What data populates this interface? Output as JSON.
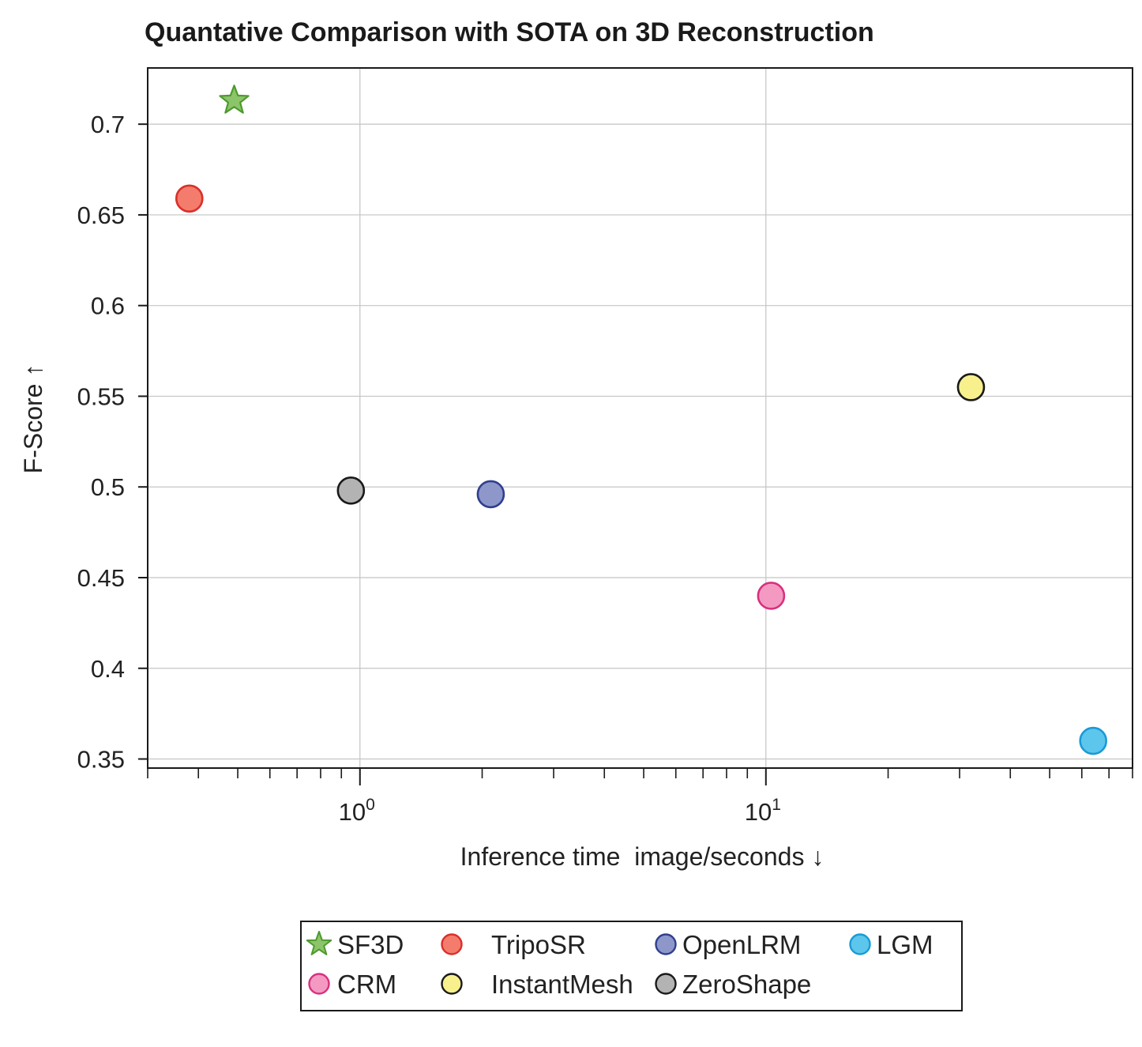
{
  "chart_data": {
    "type": "scatter",
    "title": "Quantative Comparison with SOTA on 3D Reconstruction",
    "xlabel": "Inference time  image/seconds ↓",
    "ylabel": "F-Score ↑",
    "x_scale": "log",
    "xlim": [
      0.3,
      80
    ],
    "ylim": [
      0.345,
      0.731
    ],
    "x_ticks": [
      {
        "value": 1,
        "base": "10",
        "exp": "0"
      },
      {
        "value": 10,
        "base": "10",
        "exp": "1"
      }
    ],
    "y_ticks": [
      {
        "value": 0.35,
        "label": "0.35"
      },
      {
        "value": 0.4,
        "label": "0.4"
      },
      {
        "value": 0.45,
        "label": "0.45"
      },
      {
        "value": 0.5,
        "label": "0.5"
      },
      {
        "value": 0.55,
        "label": "0.55"
      },
      {
        "value": 0.6,
        "label": "0.6"
      },
      {
        "value": 0.65,
        "label": "0.65"
      },
      {
        "value": 0.7,
        "label": "0.7"
      }
    ],
    "grid": true,
    "legend_position": "bottom",
    "series": [
      {
        "name": "SF3D",
        "marker": "star",
        "x": 0.49,
        "y": 0.713,
        "fill": "#8cc46a",
        "stroke": "#4e9a2e"
      },
      {
        "name": "TripoSR",
        "marker": "circle",
        "x": 0.38,
        "y": 0.659,
        "fill": "#f47c6c",
        "stroke": "#d9302a"
      },
      {
        "name": "OpenLRM",
        "marker": "circle",
        "x": 2.1,
        "y": 0.496,
        "fill": "#8e97c9",
        "stroke": "#2f3f8f"
      },
      {
        "name": "LGM",
        "marker": "circle",
        "x": 64,
        "y": 0.36,
        "fill": "#5cc6ec",
        "stroke": "#1a9ad6"
      },
      {
        "name": "CRM",
        "marker": "circle",
        "x": 10.3,
        "y": 0.44,
        "fill": "#f49ac2",
        "stroke": "#d8307f"
      },
      {
        "name": "InstantMesh",
        "marker": "circle",
        "x": 32,
        "y": 0.555,
        "fill": "#f8f08c",
        "stroke": "#1a1a1a"
      },
      {
        "name": "ZeroShape",
        "marker": "circle",
        "x": 0.95,
        "y": 0.498,
        "fill": "#b3b3b3",
        "stroke": "#1a1a1a"
      }
    ],
    "legend_rows": [
      [
        "SF3D",
        "TripoSR",
        "OpenLRM",
        "LGM"
      ],
      [
        "CRM",
        "InstantMesh",
        "ZeroShape"
      ]
    ]
  }
}
